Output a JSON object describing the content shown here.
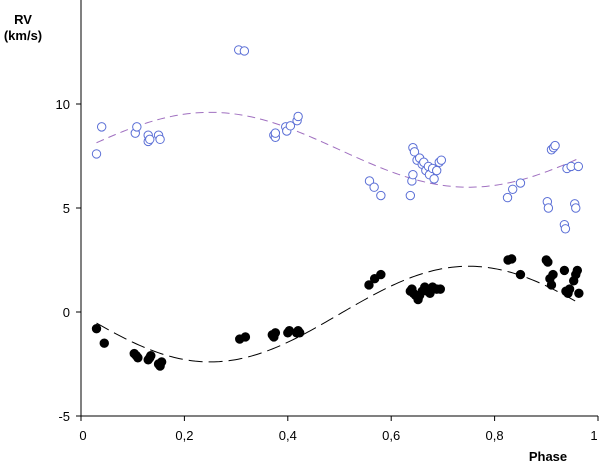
{
  "chart_data": {
    "type": "scatter",
    "xlabel": "Phase",
    "ylabel_line1": "RV",
    "ylabel_line2": "(km/s)",
    "xlim": [
      0,
      1
    ],
    "ylim": [
      -5,
      15
    ],
    "x_ticks": [
      0,
      0.2,
      0.4,
      0.6,
      0.8,
      1
    ],
    "x_tick_labels": [
      "0",
      "0,2",
      "0,4",
      "0,6",
      "0,8",
      "1"
    ],
    "y_ticks": [
      -5,
      0,
      5,
      10
    ],
    "y_tick_labels": [
      "-5",
      "0",
      "5",
      "10"
    ],
    "grid": false,
    "legend": "none",
    "series": [
      {
        "marker": "open-circle",
        "color": "#5b6fd6",
        "points": [
          [
            0.03,
            7.6
          ],
          [
            0.04,
            8.9
          ],
          [
            0.105,
            8.6
          ],
          [
            0.108,
            8.9
          ],
          [
            0.13,
            8.5
          ],
          [
            0.13,
            8.2
          ],
          [
            0.133,
            8.3
          ],
          [
            0.15,
            8.5
          ],
          [
            0.153,
            8.3
          ],
          [
            0.305,
            12.6
          ],
          [
            0.316,
            12.55
          ],
          [
            0.373,
            8.5
          ],
          [
            0.376,
            8.4
          ],
          [
            0.376,
            8.6
          ],
          [
            0.396,
            8.9
          ],
          [
            0.398,
            8.7
          ],
          [
            0.405,
            8.95
          ],
          [
            0.418,
            9.2
          ],
          [
            0.42,
            9.4
          ],
          [
            0.558,
            6.3
          ],
          [
            0.567,
            6.0
          ],
          [
            0.58,
            5.6
          ],
          [
            0.637,
            5.6
          ],
          [
            0.64,
            6.3
          ],
          [
            0.642,
            6.6
          ],
          [
            0.642,
            7.9
          ],
          [
            0.645,
            7.7
          ],
          [
            0.65,
            7.3
          ],
          [
            0.655,
            7.4
          ],
          [
            0.66,
            7.1
          ],
          [
            0.663,
            7.2
          ],
          [
            0.667,
            6.8
          ],
          [
            0.672,
            7.0
          ],
          [
            0.674,
            6.6
          ],
          [
            0.68,
            6.9
          ],
          [
            0.683,
            6.4
          ],
          [
            0.688,
            6.8
          ],
          [
            0.693,
            7.2
          ],
          [
            0.697,
            7.3
          ],
          [
            0.825,
            5.5
          ],
          [
            0.835,
            5.9
          ],
          [
            0.85,
            6.2
          ],
          [
            0.902,
            5.3
          ],
          [
            0.904,
            5.0
          ],
          [
            0.91,
            7.8
          ],
          [
            0.914,
            7.9
          ],
          [
            0.917,
            8.0
          ],
          [
            0.935,
            4.2
          ],
          [
            0.937,
            4.0
          ],
          [
            0.94,
            6.9
          ],
          [
            0.948,
            7.0
          ],
          [
            0.955,
            5.2
          ],
          [
            0.957,
            5.0
          ],
          [
            0.962,
            7.0
          ]
        ]
      },
      {
        "marker": "filled-circle",
        "color": "#000000",
        "points": [
          [
            0.03,
            -0.8
          ],
          [
            0.045,
            -1.5
          ],
          [
            0.103,
            -2.0
          ],
          [
            0.107,
            -2.1
          ],
          [
            0.11,
            -2.2
          ],
          [
            0.13,
            -2.3
          ],
          [
            0.133,
            -2.2
          ],
          [
            0.135,
            -2.1
          ],
          [
            0.15,
            -2.5
          ],
          [
            0.153,
            -2.6
          ],
          [
            0.156,
            -2.4
          ],
          [
            0.307,
            -1.3
          ],
          [
            0.318,
            -1.2
          ],
          [
            0.37,
            -1.1
          ],
          [
            0.373,
            -1.2
          ],
          [
            0.376,
            -1.0
          ],
          [
            0.4,
            -1.0
          ],
          [
            0.403,
            -0.9
          ],
          [
            0.417,
            -1.0
          ],
          [
            0.42,
            -0.9
          ],
          [
            0.423,
            -1.0
          ],
          [
            0.557,
            1.3
          ],
          [
            0.568,
            1.6
          ],
          [
            0.58,
            1.8
          ],
          [
            0.637,
            1.0
          ],
          [
            0.64,
            1.1
          ],
          [
            0.643,
            0.9
          ],
          [
            0.647,
            0.8
          ],
          [
            0.652,
            0.6
          ],
          [
            0.655,
            0.8
          ],
          [
            0.66,
            1.0
          ],
          [
            0.665,
            1.2
          ],
          [
            0.67,
            1.0
          ],
          [
            0.675,
            0.9
          ],
          [
            0.68,
            1.2
          ],
          [
            0.688,
            1.1
          ],
          [
            0.695,
            1.1
          ],
          [
            0.826,
            2.5
          ],
          [
            0.833,
            2.55
          ],
          [
            0.85,
            1.8
          ],
          [
            0.9,
            2.5
          ],
          [
            0.903,
            2.4
          ],
          [
            0.907,
            1.6
          ],
          [
            0.91,
            1.3
          ],
          [
            0.913,
            1.8
          ],
          [
            0.935,
            2.0
          ],
          [
            0.938,
            1.0
          ],
          [
            0.942,
            0.9
          ],
          [
            0.945,
            1.1
          ],
          [
            0.953,
            1.5
          ],
          [
            0.957,
            1.8
          ],
          [
            0.96,
            2.0
          ],
          [
            0.963,
            0.9
          ]
        ]
      }
    ],
    "fits": [
      {
        "style": "dashed",
        "color": "#a070c0",
        "model": "sinusoid",
        "offset": 7.8,
        "amplitude": 1.8,
        "peak_phase": 0.25,
        "x_range": [
          0.03,
          0.96
        ]
      },
      {
        "style": "long-dashed",
        "color": "#000000",
        "model": "sinusoid",
        "offset": -0.1,
        "amplitude": 2.3,
        "peak_phase": 0.75,
        "x_range": [
          0.03,
          0.96
        ]
      }
    ]
  }
}
